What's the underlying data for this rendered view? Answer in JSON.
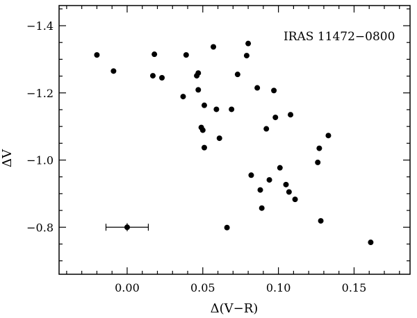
{
  "chart_data": {
    "type": "scatter",
    "title": "",
    "annotation": "IRAS 11472−0800",
    "xlabel": "Δ(V−R)",
    "ylabel": "ΔV",
    "xlim": [
      -0.045,
      0.187
    ],
    "ylim": [
      -1.46,
      -0.66
    ],
    "y_axis_inverted": true,
    "grid": false,
    "legend": "none",
    "x_ticks": [
      {
        "value": 0.0,
        "label": "0.00"
      },
      {
        "value": 0.05,
        "label": "0.05"
      },
      {
        "value": 0.1,
        "label": "0.10"
      },
      {
        "value": 0.15,
        "label": "0.15"
      }
    ],
    "y_ticks": [
      {
        "value": -1.4,
        "label": "−1.4"
      },
      {
        "value": -1.2,
        "label": "−1.2"
      },
      {
        "value": -1.0,
        "label": "−1.0"
      },
      {
        "value": -0.8,
        "label": "−0.8"
      }
    ],
    "x_minor_step": 0.01,
    "y_minor_step": 0.05,
    "series": [
      {
        "points": [
          [
            -0.02,
            -1.313
          ],
          [
            -0.009,
            -1.265
          ],
          [
            0.017,
            -1.251
          ],
          [
            0.018,
            -1.315
          ],
          [
            0.023,
            -1.245
          ],
          [
            0.037,
            -1.189
          ],
          [
            0.039,
            -1.313
          ],
          [
            0.046,
            -1.251
          ],
          [
            0.047,
            -1.259
          ],
          [
            0.047,
            -1.209
          ],
          [
            0.049,
            -1.097
          ],
          [
            0.05,
            -1.089
          ],
          [
            0.051,
            -1.163
          ],
          [
            0.051,
            -1.037
          ],
          [
            0.057,
            -1.337
          ],
          [
            0.059,
            -1.151
          ],
          [
            0.061,
            -1.065
          ],
          [
            0.066,
            -0.799
          ],
          [
            0.069,
            -1.151
          ],
          [
            0.073,
            -1.255
          ],
          [
            0.079,
            -1.311
          ],
          [
            0.08,
            -1.347
          ],
          [
            0.082,
            -0.955
          ],
          [
            0.086,
            -1.215
          ],
          [
            0.088,
            -0.911
          ],
          [
            0.089,
            -0.857
          ],
          [
            0.092,
            -1.093
          ],
          [
            0.094,
            -0.941
          ],
          [
            0.097,
            -1.207
          ],
          [
            0.098,
            -1.127
          ],
          [
            0.101,
            -0.977
          ],
          [
            0.105,
            -0.927
          ],
          [
            0.107,
            -0.905
          ],
          [
            0.108,
            -1.135
          ],
          [
            0.111,
            -0.883
          ],
          [
            0.126,
            -0.993
          ],
          [
            0.127,
            -1.035
          ],
          [
            0.128,
            -0.819
          ],
          [
            0.133,
            -1.073
          ],
          [
            0.161,
            -0.755
          ]
        ]
      }
    ],
    "error_sample": {
      "x": 0.0,
      "y": -0.8,
      "x_err": 0.014,
      "y_err": 0.012
    }
  }
}
